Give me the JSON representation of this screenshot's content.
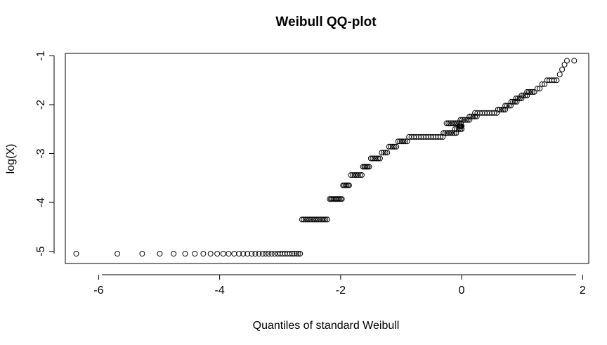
{
  "chart_data": {
    "type": "scatter",
    "title": "Weibull QQ-plot",
    "xlabel": "Quantiles of standard Weibull",
    "ylabel": "log(X)",
    "xlim": [
      -6.55,
      2.1
    ],
    "ylim": [
      -5.25,
      -0.95
    ],
    "xticks": [
      -6,
      -4,
      -2,
      0,
      2
    ],
    "yticks": [
      -5,
      -4,
      -3,
      -2,
      -1
    ],
    "xtick_labels": [
      "-6",
      "-4",
      "-2",
      "0",
      "2"
    ],
    "ytick_labels": [
      "-5",
      "-4",
      "-3",
      "-2",
      "-1"
    ],
    "grid": false,
    "marker": "open-circle",
    "clusters": [
      {
        "y": -5.05,
        "x": [
          -6.37,
          -5.69,
          -5.28,
          -4.99,
          -4.76,
          -4.57,
          -4.41,
          -4.27,
          -4.15,
          -4.04,
          -3.94,
          -3.85,
          -3.76,
          -3.68,
          -3.61,
          -3.54,
          -3.47,
          -3.41,
          -3.35,
          -3.29,
          -3.24,
          -3.19,
          -3.14,
          -3.09,
          -3.04,
          -3.0,
          -2.96,
          -2.92,
          -2.88,
          -2.84,
          -2.8,
          -2.77,
          -2.73,
          -2.7,
          -2.67
        ]
      },
      {
        "y": -4.35,
        "x": [
          -2.64,
          -2.61,
          -2.58,
          -2.55,
          -2.52,
          -2.49,
          -2.46,
          -2.43,
          -2.4,
          -2.37,
          -2.34,
          -2.31,
          -2.28,
          -2.25,
          -2.22
        ]
      },
      {
        "y": -3.93,
        "x": [
          -2.18,
          -2.16,
          -2.14,
          -2.12,
          -2.1,
          -2.08,
          -2.06,
          -2.04,
          -2.02,
          -2.0,
          -1.98
        ]
      },
      {
        "y": -3.65,
        "x": [
          -1.96,
          -1.94,
          -1.92,
          -1.9,
          -1.88,
          -1.86
        ]
      },
      {
        "y": -3.44,
        "x": [
          -1.83,
          -1.8,
          -1.77,
          -1.74,
          -1.71,
          -1.68,
          -1.65
        ]
      },
      {
        "y": -3.27,
        "x": [
          -1.63,
          -1.61,
          -1.59,
          -1.57,
          -1.55,
          -1.53
        ]
      },
      {
        "y": -3.1,
        "x": [
          -1.5,
          -1.47,
          -1.44,
          -1.41,
          -1.38,
          -1.35
        ]
      },
      {
        "y": -2.98,
        "x": [
          -1.32,
          -1.29,
          -1.26,
          -1.23
        ]
      },
      {
        "y": -2.86,
        "x": [
          -1.2,
          -1.17,
          -1.14,
          -1.11,
          -1.08
        ]
      },
      {
        "y": -2.75,
        "x": [
          -1.05,
          -1.02,
          -0.99,
          -0.96,
          -0.93,
          -0.9
        ]
      },
      {
        "y": -2.66,
        "x": [
          -0.87,
          -0.83,
          -0.79,
          -0.75,
          -0.71,
          -0.67,
          -0.63,
          -0.59,
          -0.55,
          -0.51,
          -0.47,
          -0.43,
          -0.39,
          -0.35,
          -0.31
        ]
      },
      {
        "y": -2.58,
        "x": [
          -0.3,
          -0.27,
          -0.24,
          -0.21,
          -0.18,
          -0.15,
          -0.12,
          -0.09
        ]
      },
      {
        "y": -2.5,
        "x": [
          -0.11,
          -0.08,
          -0.05,
          -0.02,
          0.0
        ]
      },
      {
        "y": -2.44,
        "x": [
          -0.03,
          -0.01,
          0.0,
          -0.02,
          -0.04
        ]
      },
      {
        "y": -2.38,
        "x": [
          -0.25,
          -0.22,
          -0.19,
          -0.16,
          -0.13,
          -0.1,
          -0.07,
          -0.04,
          -0.01
        ]
      },
      {
        "y": -2.31,
        "x": [
          -0.02,
          0.01,
          0.04,
          0.07,
          0.1,
          0.13
        ]
      },
      {
        "y": -2.24,
        "x": [
          0.13,
          0.16,
          0.19,
          0.22,
          0.25
        ]
      },
      {
        "y": -2.17,
        "x": [
          0.22,
          0.26,
          0.3,
          0.34,
          0.38,
          0.42,
          0.46,
          0.5,
          0.54,
          0.58
        ]
      },
      {
        "y": -2.1,
        "x": [
          0.6,
          0.63,
          0.66,
          0.69,
          0.72
        ]
      },
      {
        "y": -2.02,
        "x": [
          0.72,
          0.75,
          0.78,
          0.81
        ]
      },
      {
        "y": -1.94,
        "x": [
          0.82,
          0.85,
          0.88,
          0.91
        ]
      },
      {
        "y": -1.87,
        "x": [
          0.9,
          0.93,
          0.96,
          0.99
        ]
      },
      {
        "y": -1.81,
        "x": [
          0.99,
          1.02,
          1.05,
          1.08
        ]
      },
      {
        "y": -1.74,
        "x": [
          1.08,
          1.11,
          1.14,
          1.17,
          1.2
        ]
      },
      {
        "y": -1.67,
        "x": [
          1.25,
          1.29
        ]
      },
      {
        "y": -1.58,
        "x": [
          1.33,
          1.37
        ]
      },
      {
        "y": -1.5,
        "x": [
          1.41,
          1.45,
          1.49,
          1.53,
          1.57
        ]
      },
      {
        "y": -1.38,
        "x": [
          1.62
        ]
      },
      {
        "y": -1.28,
        "x": [
          1.66
        ]
      },
      {
        "y": -1.18,
        "x": [
          1.7
        ]
      },
      {
        "y": -1.1,
        "x": [
          1.74,
          1.86
        ]
      }
    ]
  }
}
